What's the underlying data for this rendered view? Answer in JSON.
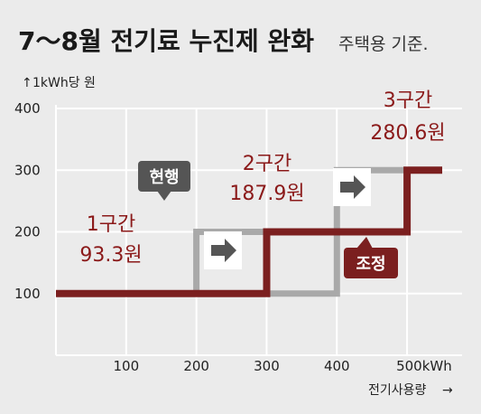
{
  "title": "7～8월 전기료 누진제 완화",
  "subtitle": "주택용 기준.",
  "chart_data": {
    "type": "line",
    "ylabel": "1kWh당 원",
    "xlabel": "전기사용량",
    "ylim": [
      0,
      400
    ],
    "yticks": [
      100,
      200,
      300,
      400
    ],
    "xlim": [
      0,
      550
    ],
    "xticks": [
      100,
      200,
      300,
      400,
      500
    ],
    "xtick_labels": [
      "100",
      "200",
      "300",
      "400",
      "500kWh"
    ],
    "grid": true,
    "series": [
      {
        "name": "현행",
        "color": "#a9a9a9",
        "x": [
          0,
          200,
          200,
          300,
          300,
          400,
          400,
          500
        ],
        "y": [
          100,
          100,
          200,
          200,
          100,
          100,
          300,
          300
        ]
      },
      {
        "name": "조정",
        "color": "#7b1f1f",
        "x": [
          0,
          300,
          300,
          500,
          500,
          550
        ],
        "y": [
          100,
          100,
          200,
          200,
          300,
          300
        ]
      }
    ],
    "tiers": [
      {
        "line1": "1구간",
        "line2": "93.3원"
      },
      {
        "line1": "2구간",
        "line2": "187.9원"
      },
      {
        "line1": "3구간",
        "line2": "280.6원"
      }
    ],
    "tags": {
      "current": "현행",
      "adjusted": "조정"
    }
  },
  "colors": {
    "background": "#ebebeb",
    "grid": "#ffffff",
    "current": "#a9a9a9",
    "adjusted": "#7b1f1f",
    "tier_text": "#8b1a1a",
    "current_tag": "#555555",
    "adjusted_tag": "#7b1f1f",
    "arrow": "#555555"
  }
}
